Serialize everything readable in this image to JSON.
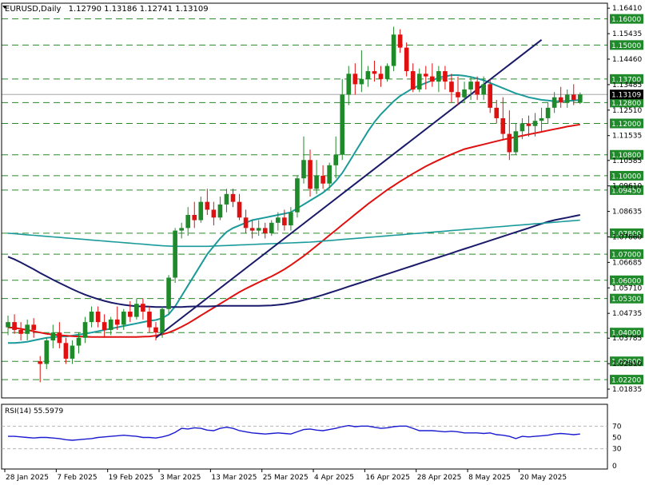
{
  "header": {
    "symbol": "EURUSD,Daily",
    "ohlc": "1.12790 1.13186 1.12741 1.13109"
  },
  "colors": {
    "bull": "#1f8a2a",
    "bear": "#e01010",
    "level_line": "#2a8a2a",
    "level_label_bg": "#1f8a2a",
    "current_price_bg": "#000000",
    "ma_fast": "#1a9a9a",
    "ma_mid": "#e01010",
    "ma_slow": "#1a1a6a",
    "ma_long": "#1a9a9a",
    "trendline": "#1a1a6a",
    "rsi": "#1a1ad0"
  },
  "chart_data": [
    {
      "type": "candlestick",
      "ylim": [
        1.015,
        1.166
      ],
      "y_ticks": [
        "1.16410",
        "1.15435",
        "1.14460",
        "1.13485",
        "1.12510",
        "1.11535",
        "1.10585",
        "1.09610",
        "1.08635",
        "1.07660",
        "1.06685",
        "1.05710",
        "1.04735",
        "1.03785",
        "1.02810",
        "1.01835"
      ],
      "x_tick_labels": [
        "28 Jan 2025",
        "7 Feb 2025",
        "19 Feb 2025",
        "3 Mar 2025",
        "13 Mar 2025",
        "25 Mar 2025",
        "4 Apr 2025",
        "16 Apr 2025",
        "28 Apr 2025",
        "8 May 2025",
        "20 May 2025"
      ],
      "x_tick_index": [
        0,
        8,
        16,
        24,
        32,
        40,
        48,
        56,
        64,
        72,
        80
      ],
      "current_price": "1.13109",
      "horizontal_levels": [
        "1.16000",
        "1.15000",
        "1.13700",
        "1.12800",
        "1.12000",
        "1.10800",
        "1.10000",
        "1.09450",
        "1.07800",
        "1.07000",
        "1.06000",
        "1.05300",
        "1.04000",
        "1.02900",
        "1.02200"
      ],
      "candles": [
        [
          1.042,
          1.0465,
          1.039,
          1.044
        ],
        [
          1.044,
          1.047,
          1.0395,
          1.041
        ],
        [
          1.041,
          1.044,
          1.037,
          1.0395
        ],
        [
          1.0395,
          1.045,
          1.037,
          1.043
        ],
        [
          1.043,
          1.0455,
          1.038,
          1.041
        ],
        [
          1.029,
          1.031,
          1.021,
          1.028
        ],
        [
          1.028,
          1.038,
          1.026,
          1.037
        ],
        [
          1.037,
          1.043,
          1.034,
          1.04
        ],
        [
          1.04,
          1.044,
          1.034,
          1.036
        ],
        [
          1.036,
          1.038,
          1.028,
          1.03
        ],
        [
          1.03,
          1.037,
          1.028,
          1.035
        ],
        [
          1.035,
          1.04,
          1.032,
          1.038
        ],
        [
          1.038,
          1.046,
          1.036,
          1.044
        ],
        [
          1.044,
          1.05,
          1.042,
          1.048
        ],
        [
          1.048,
          1.05,
          1.042,
          1.044
        ],
        [
          1.044,
          1.047,
          1.038,
          1.041
        ],
        [
          1.041,
          1.046,
          1.039,
          1.045
        ],
        [
          1.045,
          1.05,
          1.041,
          1.043
        ],
        [
          1.043,
          1.049,
          1.041,
          1.048
        ],
        [
          1.048,
          1.052,
          1.044,
          1.046
        ],
        [
          1.046,
          1.053,
          1.045,
          1.051
        ],
        [
          1.051,
          1.053,
          1.045,
          1.048
        ],
        [
          1.048,
          1.05,
          1.04,
          1.042
        ],
        [
          1.042,
          1.044,
          1.037,
          1.04
        ],
        [
          1.04,
          1.05,
          1.038,
          1.049
        ],
        [
          1.049,
          1.062,
          1.047,
          1.061
        ],
        [
          1.061,
          1.08,
          1.059,
          1.079
        ],
        [
          1.079,
          1.082,
          1.076,
          1.08
        ],
        [
          1.08,
          1.088,
          1.077,
          1.085
        ],
        [
          1.085,
          1.09,
          1.08,
          1.083
        ],
        [
          1.083,
          1.092,
          1.082,
          1.09
        ],
        [
          1.09,
          1.095,
          1.085,
          1.087
        ],
        [
          1.087,
          1.09,
          1.081,
          1.084
        ],
        [
          1.084,
          1.092,
          1.083,
          1.089
        ],
        [
          1.089,
          1.095,
          1.086,
          1.093
        ],
        [
          1.093,
          1.095,
          1.088,
          1.09
        ],
        [
          1.09,
          1.093,
          1.083,
          1.084
        ],
        [
          1.084,
          1.087,
          1.078,
          1.08
        ],
        [
          1.08,
          1.083,
          1.076,
          1.079
        ],
        [
          1.079,
          1.083,
          1.077,
          1.08
        ],
        [
          1.08,
          1.082,
          1.076,
          1.078
        ],
        [
          1.078,
          1.083,
          1.077,
          1.082
        ],
        [
          1.082,
          1.086,
          1.079,
          1.084
        ],
        [
          1.084,
          1.087,
          1.079,
          1.081
        ],
        [
          1.081,
          1.088,
          1.079,
          1.086
        ],
        [
          1.086,
          1.1,
          1.084,
          1.099
        ],
        [
          1.099,
          1.115,
          1.097,
          1.106
        ],
        [
          1.106,
          1.11,
          1.092,
          1.095
        ],
        [
          1.095,
          1.106,
          1.093,
          1.1
        ],
        [
          1.1,
          1.104,
          1.095,
          1.097
        ],
        [
          1.097,
          1.105,
          1.095,
          1.104
        ],
        [
          1.104,
          1.115,
          1.099,
          1.108
        ],
        [
          1.108,
          1.137,
          1.106,
          1.131
        ],
        [
          1.131,
          1.142,
          1.127,
          1.139
        ],
        [
          1.139,
          1.143,
          1.131,
          1.135
        ],
        [
          1.135,
          1.148,
          1.132,
          1.137
        ],
        [
          1.137,
          1.142,
          1.134,
          1.14
        ],
        [
          1.14,
          1.144,
          1.136,
          1.139
        ],
        [
          1.139,
          1.142,
          1.134,
          1.137
        ],
        [
          1.137,
          1.143,
          1.136,
          1.142
        ],
        [
          1.142,
          1.157,
          1.14,
          1.154
        ],
        [
          1.154,
          1.156,
          1.147,
          1.149
        ],
        [
          1.149,
          1.151,
          1.138,
          1.14
        ],
        [
          1.14,
          1.143,
          1.132,
          1.133
        ],
        [
          1.133,
          1.141,
          1.132,
          1.139
        ],
        [
          1.139,
          1.142,
          1.133,
          1.138
        ],
        [
          1.138,
          1.143,
          1.134,
          1.136
        ],
        [
          1.136,
          1.142,
          1.132,
          1.14
        ],
        [
          1.14,
          1.142,
          1.133,
          1.136
        ],
        [
          1.136,
          1.139,
          1.128,
          1.132
        ],
        [
          1.132,
          1.138,
          1.127,
          1.13
        ],
        [
          1.13,
          1.136,
          1.128,
          1.133
        ],
        [
          1.133,
          1.138,
          1.129,
          1.136
        ],
        [
          1.136,
          1.138,
          1.129,
          1.131
        ],
        [
          1.131,
          1.138,
          1.129,
          1.135
        ],
        [
          1.135,
          1.137,
          1.124,
          1.126
        ],
        [
          1.126,
          1.129,
          1.12,
          1.122
        ],
        [
          1.122,
          1.13,
          1.114,
          1.116
        ],
        [
          1.116,
          1.125,
          1.106,
          1.109
        ],
        [
          1.109,
          1.12,
          1.108,
          1.117
        ],
        [
          1.117,
          1.122,
          1.114,
          1.12
        ],
        [
          1.12,
          1.123,
          1.115,
          1.119
        ],
        [
          1.119,
          1.124,
          1.115,
          1.121
        ],
        [
          1.121,
          1.126,
          1.117,
          1.122
        ],
        [
          1.122,
          1.128,
          1.12,
          1.126
        ],
        [
          1.126,
          1.132,
          1.124,
          1.13
        ],
        [
          1.13,
          1.134,
          1.126,
          1.128
        ],
        [
          1.128,
          1.133,
          1.126,
          1.131
        ],
        [
          1.131,
          1.135,
          1.127,
          1.129
        ],
        [
          1.1279,
          1.13186,
          1.12741,
          1.13109
        ]
      ],
      "moving_averages": [
        {
          "role": "ma_fast",
          "values": [
            1.036,
            1.036,
            1.0362,
            1.0365,
            1.037,
            1.0375,
            1.038,
            1.0382,
            1.0385,
            1.0385,
            1.0388,
            1.0392,
            1.0395,
            1.04,
            1.0405,
            1.041,
            1.0415,
            1.042,
            1.0425,
            1.043,
            1.0435,
            1.044,
            1.0445,
            1.0448,
            1.0455,
            1.047,
            1.05,
            1.054,
            1.058,
            1.062,
            1.066,
            1.07,
            1.073,
            1.076,
            1.0785,
            1.08,
            1.081,
            1.082,
            1.083,
            1.0835,
            1.084,
            1.0845,
            1.085,
            1.0855,
            1.086,
            1.0875,
            1.089,
            1.0905,
            1.092,
            1.0935,
            1.0955,
            1.098,
            1.101,
            1.105,
            1.109,
            1.113,
            1.117,
            1.1205,
            1.1235,
            1.126,
            1.1285,
            1.1305,
            1.132,
            1.1335,
            1.1345,
            1.1355,
            1.1365,
            1.1375,
            1.138,
            1.1385,
            1.1385,
            1.1382,
            1.1378,
            1.1372,
            1.1365,
            1.1355,
            1.1345,
            1.1335,
            1.1325,
            1.1315,
            1.1308,
            1.13,
            1.1295,
            1.129,
            1.1288,
            1.1285,
            1.1285,
            1.1286,
            1.1288,
            1.129
          ]
        },
        {
          "role": "ma_mid",
          "values": [
            1.042,
            1.0418,
            1.0414,
            1.041,
            1.0405,
            1.04,
            1.0395,
            1.0392,
            1.039,
            1.0388,
            1.0386,
            1.0385,
            1.0384,
            1.0383,
            1.0383,
            1.0383,
            1.0383,
            1.0383,
            1.0383,
            1.0383,
            1.0383,
            1.0384,
            1.0385,
            1.0388,
            1.0393,
            1.04,
            1.041,
            1.0422,
            1.0435,
            1.045,
            1.0465,
            1.048,
            1.0495,
            1.051,
            1.0525,
            1.054,
            1.0555,
            1.0568,
            1.058,
            1.0592,
            1.0604,
            1.0615,
            1.0628,
            1.0642,
            1.0658,
            1.0675,
            1.0693,
            1.0712,
            1.0732,
            1.0752,
            1.0772,
            1.0792,
            1.0812,
            1.0832,
            1.0852,
            1.0872,
            1.0892,
            1.091,
            1.0928,
            1.0946,
            1.0962,
            1.0978,
            1.0993,
            1.1008,
            1.1022,
            1.1036,
            1.1048,
            1.106,
            1.1071,
            1.1082,
            1.1092,
            1.1102,
            1.1108,
            1.1114,
            1.112,
            1.1126,
            1.1132,
            1.1138,
            1.1143,
            1.1148,
            1.1153,
            1.1158,
            1.1163,
            1.1168,
            1.1173,
            1.1178,
            1.1183,
            1.1188,
            1.1192,
            1.1196
          ]
        },
        {
          "role": "ma_slow",
          "values": [
            1.069,
            1.068,
            1.0668,
            1.0655,
            1.0642,
            1.0628,
            1.0615,
            1.0602,
            1.059,
            1.0578,
            1.0566,
            1.0555,
            1.0545,
            1.0536,
            1.0528,
            1.0521,
            1.0515,
            1.051,
            1.0506,
            1.0503,
            1.0501,
            1.05,
            1.0499,
            1.0498,
            1.0498,
            1.0498,
            1.0498,
            1.0498,
            1.0499,
            1.05,
            1.05,
            1.05,
            1.0501,
            1.0502,
            1.0502,
            1.0502,
            1.0502,
            1.0502,
            1.0502,
            1.0502,
            1.0503,
            1.0504,
            1.0506,
            1.0509,
            1.0513,
            1.0518,
            1.0524,
            1.053,
            1.0537,
            1.0544,
            1.0552,
            1.056,
            1.0568,
            1.0576,
            1.0584,
            1.0592,
            1.06,
            1.0608,
            1.0616,
            1.0624,
            1.0632,
            1.064,
            1.0648,
            1.0656,
            1.0664,
            1.0672,
            1.068,
            1.0688,
            1.0696,
            1.0704,
            1.0712,
            1.072,
            1.0728,
            1.0736,
            1.0744,
            1.0752,
            1.076,
            1.0768,
            1.0776,
            1.0784,
            1.0792,
            1.08,
            1.0808,
            1.0816,
            1.0824,
            1.083,
            1.0835,
            1.084,
            1.0845,
            1.085
          ]
        },
        {
          "role": "ma_long",
          "values": [
            1.078,
            1.0778,
            1.0776,
            1.0774,
            1.0772,
            1.077,
            1.0768,
            1.0766,
            1.0764,
            1.0762,
            1.076,
            1.0758,
            1.0756,
            1.0754,
            1.0752,
            1.075,
            1.0748,
            1.0746,
            1.0744,
            1.0742,
            1.074,
            1.0738,
            1.0736,
            1.0734,
            1.0732,
            1.0731,
            1.073,
            1.073,
            1.073,
            1.073,
            1.073,
            1.073,
            1.0731,
            1.0732,
            1.0733,
            1.0734,
            1.0735,
            1.0736,
            1.0737,
            1.0738,
            1.0739,
            1.074,
            1.0741,
            1.0742,
            1.0743,
            1.0744,
            1.0745,
            1.0746,
            1.0748,
            1.075,
            1.0752,
            1.0754,
            1.0756,
            1.0758,
            1.076,
            1.0762,
            1.0764,
            1.0766,
            1.0768,
            1.077,
            1.0772,
            1.0774,
            1.0776,
            1.0778,
            1.078,
            1.0782,
            1.0784,
            1.0786,
            1.0788,
            1.079,
            1.0792,
            1.0794,
            1.0796,
            1.0798,
            1.08,
            1.0802,
            1.0804,
            1.0806,
            1.0808,
            1.081,
            1.0812,
            1.0814,
            1.0816,
            1.0818,
            1.082,
            1.0822,
            1.0824,
            1.0826,
            1.0828,
            1.083
          ]
        }
      ],
      "trendlines": [
        {
          "from": [
            23,
            1.038
          ],
          "to": [
            83,
            1.152
          ]
        }
      ]
    },
    {
      "type": "line",
      "title": "RSI(14) 55.5979",
      "ylim": [
        0,
        100
      ],
      "y_ticks": [
        "70",
        "50",
        "30",
        "0"
      ],
      "reference_levels": [
        70,
        30
      ],
      "values": [
        52,
        52,
        51,
        50,
        49,
        50,
        50,
        49,
        48,
        46,
        45,
        46,
        47,
        48,
        50,
        51,
        52,
        53,
        54,
        53,
        52,
        50,
        50,
        49,
        51,
        54,
        59,
        66,
        65,
        67,
        66,
        63,
        62,
        66,
        68,
        66,
        62,
        60,
        58,
        57,
        56,
        57,
        58,
        57,
        56,
        60,
        64,
        65,
        63,
        62,
        64,
        66,
        69,
        71,
        69,
        70,
        70,
        68,
        66,
        67,
        69,
        70,
        70,
        66,
        62,
        62,
        62,
        61,
        60,
        61,
        60,
        58,
        58,
        58,
        57,
        58,
        55,
        54,
        52,
        48,
        52,
        51,
        52,
        53,
        54,
        56,
        57,
        56,
        55,
        56
      ]
    }
  ]
}
